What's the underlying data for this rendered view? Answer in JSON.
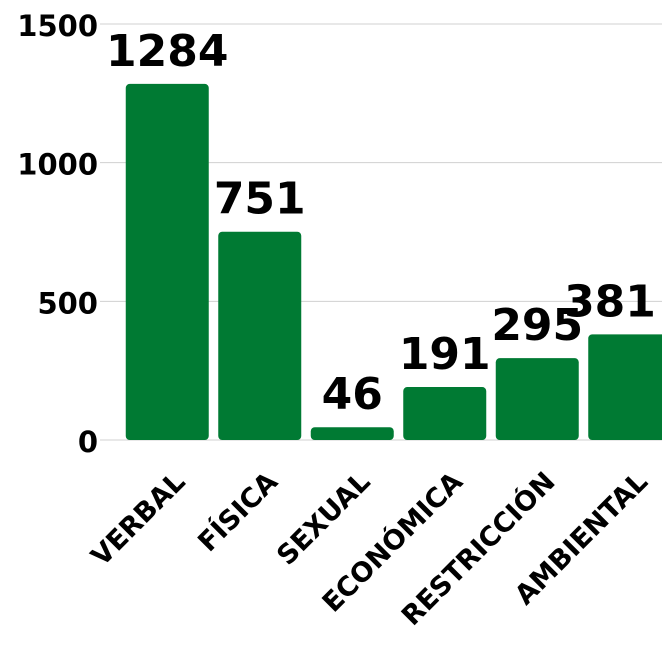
{
  "chart_data": {
    "type": "bar",
    "categories": [
      "VERBAL",
      "FÍSICA",
      "SEXUAL",
      "ECONÓMICA",
      "RESTRICCIÓN",
      "AMBIENTAL"
    ],
    "values": [
      1284,
      751,
      46,
      191,
      295,
      381
    ],
    "color": "#007a33",
    "ylim": [
      0,
      1500
    ],
    "yticks": [
      0,
      500,
      1000,
      1500
    ],
    "grid": true
  }
}
